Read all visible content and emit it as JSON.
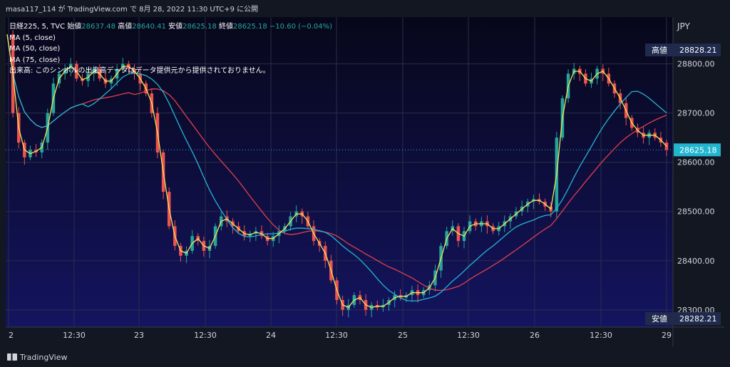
{
  "header": {
    "attribution": "masa117_114 が TradingView.com で 8月 28, 2022 11:30 UTC+9 に公開"
  },
  "legend": {
    "symbol": "日経225, 5, TVC",
    "open_label": "始値",
    "open_value": "28637.48",
    "high_label": "高値",
    "high_value": "28640.41",
    "low_label": "安値",
    "low_value": "28625.18",
    "close_label": "終値",
    "close_value": "28625.18",
    "change": "−10.60 (−0.04%)",
    "indicators": [
      "MA (5, close)",
      "MA (50, close)",
      "MA (75, close)"
    ],
    "volume_note": "出来高: このシンボルの出来高データはデータ提供元から提供されておりません。"
  },
  "currency": "JPY",
  "footer": {
    "brand": "TradingView"
  },
  "colors": {
    "background_top": "#07071a",
    "background_bottom": "#141460",
    "up": "#26a69a",
    "down": "#ef5350",
    "ma5": "#f2e35c",
    "ma50": "#23b6d2",
    "ma75": "#e0404a",
    "price_badge": "#22b5d0",
    "high_low_badge": "#1f2a4d"
  },
  "chart_data": {
    "type": "candlestick",
    "title": "日経225, 5, TVC",
    "yticks": [
      "28300.00",
      "28400.00",
      "28500.00",
      "28600.00",
      "28700.00",
      "28800.00"
    ],
    "xticks": [
      "2",
      "12:30",
      "23",
      "12:30",
      "24",
      "12:30",
      "25",
      "12:30",
      "26",
      "12:30",
      "29"
    ],
    "ylim": [
      28265,
      28895
    ],
    "last_price": 28625.18,
    "last_price_label": "28625.18",
    "high_marker": {
      "label": "高値",
      "value": 28828.21,
      "text": "28828.21"
    },
    "low_marker": {
      "label": "安値",
      "value": 28282.21,
      "text": "28282.21"
    },
    "grid": true,
    "close_series": [
      28860,
      28700,
      28640,
      28610,
      28625,
      28620,
      28640,
      28700,
      28760,
      28780,
      28790,
      28800,
      28770,
      28765,
      28780,
      28790,
      28770,
      28760,
      28770,
      28790,
      28800,
      28790,
      28780,
      28760,
      28740,
      28700,
      28620,
      28540,
      28470,
      28430,
      28410,
      28420,
      28450,
      28440,
      28420,
      28430,
      28470,
      28490,
      28480,
      28470,
      28460,
      28450,
      28455,
      28460,
      28450,
      28440,
      28450,
      28460,
      28470,
      28490,
      28500,
      28490,
      28470,
      28440,
      28430,
      28400,
      28360,
      28320,
      28300,
      28310,
      28330,
      28320,
      28300,
      28310,
      28305,
      28310,
      28320,
      28330,
      28325,
      28330,
      28340,
      28330,
      28340,
      28350,
      28380,
      28430,
      28460,
      28470,
      28440,
      28460,
      28480,
      28470,
      28480,
      28470,
      28460,
      28470,
      28480,
      28490,
      28500,
      28510,
      28520,
      28525,
      28520,
      28510,
      28500,
      28650,
      28730,
      28780,
      28790,
      28780,
      28760,
      28770,
      28790,
      28780,
      28760,
      28740,
      28720,
      28690,
      28670,
      28660,
      28650,
      28660,
      28650,
      28640,
      28625
    ]
  }
}
